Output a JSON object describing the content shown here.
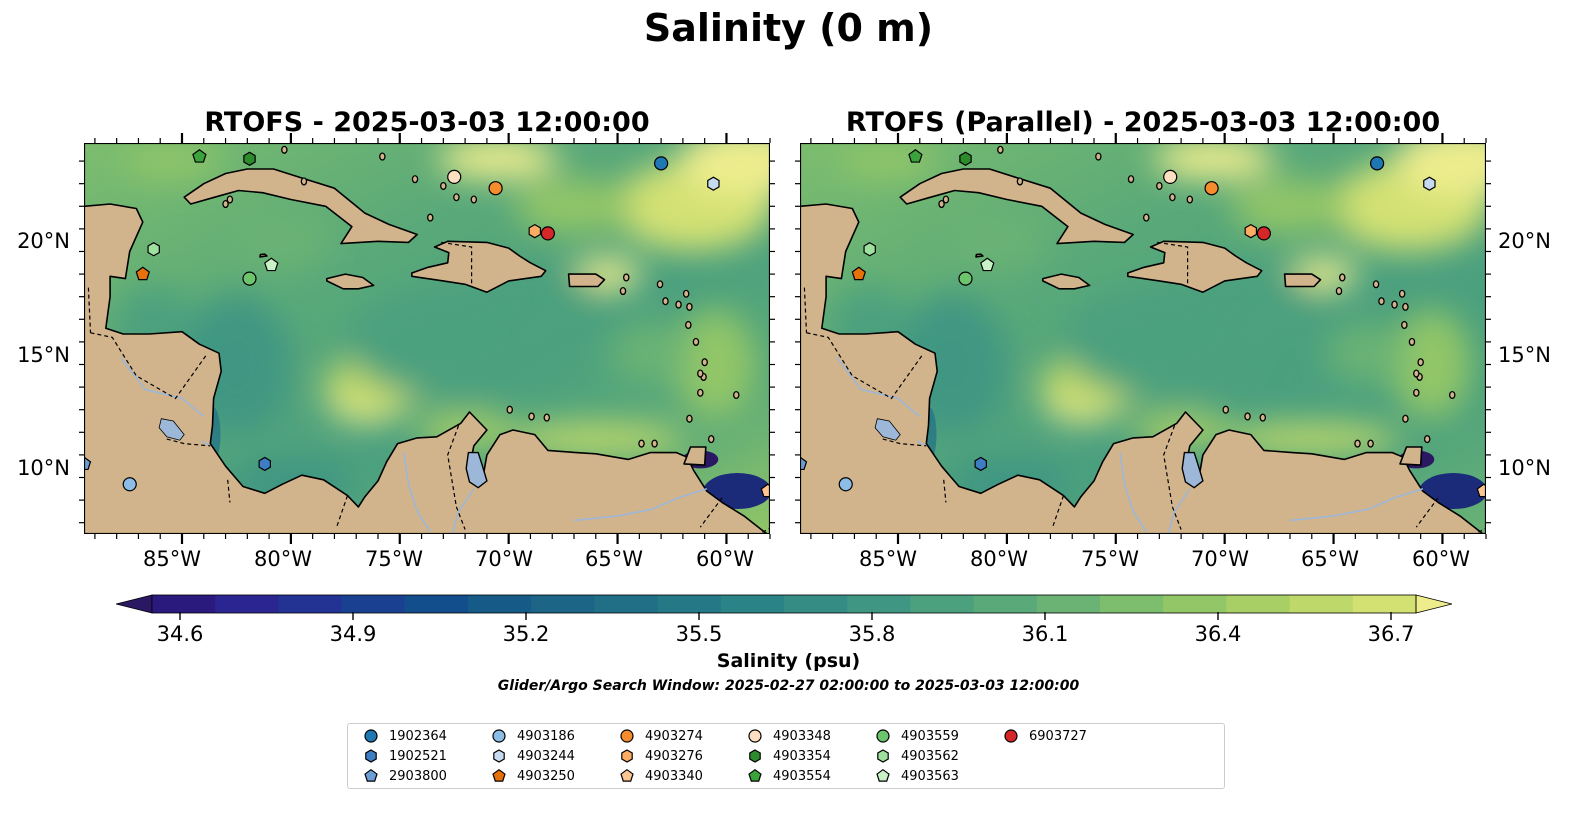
{
  "title": "Salinity (0 m)",
  "panels": [
    {
      "title": "RTOFS - 2025-03-03 12:00:00"
    },
    {
      "title": "RTOFS (Parallel) - 2025-03-03 12:00:00"
    }
  ],
  "map": {
    "lon_range": [
      -89.5,
      -58.0
    ],
    "lat_range": [
      7.0,
      24.3
    ],
    "lat_ticks": [
      "20°N",
      "15°N",
      "10°N"
    ],
    "lon_ticks": [
      "85°W",
      "80°W",
      "75°W",
      "70°W",
      "65°W",
      "60°W"
    ],
    "land_color": "#d2b48c",
    "pacific_color": "#2a1a6e",
    "lake_color": "#9db7d9"
  },
  "colorbar": {
    "label": "Salinity (psu)",
    "min": 34.6,
    "max": 36.7,
    "ticks": [
      "34.6",
      "34.9",
      "35.2",
      "35.5",
      "35.8",
      "36.1",
      "36.4",
      "36.7"
    ],
    "colors": [
      "#2a1862",
      "#2b1a7d",
      "#2a2590",
      "#233394",
      "#1a4191",
      "#134e8c",
      "#165a88",
      "#1c6586",
      "#216f86",
      "#257986",
      "#2a8387",
      "#348c85",
      "#3f9682",
      "#4ba07e",
      "#5aa979",
      "#6ab374",
      "#7cbd6e",
      "#92c667",
      "#a8cf66",
      "#bed86a",
      "#d3e173",
      "#eeed8e"
    ],
    "extend": "both"
  },
  "search_window": "Glider/Argo Search Window: 2025-02-27 02:00:00 to 2025-03-03 12:00:00",
  "platforms": [
    {
      "id": "1902364",
      "marker": "circle",
      "color": "#1f77b4",
      "lon": -63.0,
      "lat": 23.4
    },
    {
      "id": "1902521",
      "marker": "hexagon",
      "color": "#3c7dc4",
      "lon": -81.2,
      "lat": 10.1
    },
    {
      "id": "2903800",
      "marker": "pentagon",
      "color": "#6b9fd4",
      "lon": -89.5,
      "lat": 10.1
    },
    {
      "id": "4903186",
      "marker": "circle",
      "color": "#8bbde6",
      "lon": -87.4,
      "lat": 9.2
    },
    {
      "id": "4903244",
      "marker": "hexagon",
      "color": "#c6dbef",
      "lon": -60.6,
      "lat": 22.5
    },
    {
      "id": "4903250",
      "marker": "pentagon",
      "color": "#e6700a",
      "lon": -86.8,
      "lat": 18.5
    },
    {
      "id": "4903274",
      "marker": "circle",
      "color": "#f58d2f",
      "lon": -70.6,
      "lat": 22.3
    },
    {
      "id": "4903276",
      "marker": "hexagon",
      "color": "#fdad63",
      "lon": -68.8,
      "lat": 20.4
    },
    {
      "id": "4903340",
      "marker": "pentagon",
      "color": "#fdc591",
      "lon": -58.1,
      "lat": 8.9
    },
    {
      "id": "4903348",
      "marker": "circle",
      "color": "#fde0c2",
      "lon": -72.5,
      "lat": 22.8
    },
    {
      "id": "4903354",
      "marker": "hexagon",
      "color": "#2c8c2c",
      "lon": -81.9,
      "lat": 23.6
    },
    {
      "id": "4903554",
      "marker": "pentagon",
      "color": "#3ba33b",
      "lon": -84.2,
      "lat": 23.7
    },
    {
      "id": "4903559",
      "marker": "circle",
      "color": "#6cc46c",
      "lon": -81.9,
      "lat": 18.3
    },
    {
      "id": "4903562",
      "marker": "hexagon",
      "color": "#9ee19e",
      "lon": -86.3,
      "lat": 19.6
    },
    {
      "id": "4903563",
      "marker": "pentagon",
      "color": "#c9f2c6",
      "lon": -80.9,
      "lat": 18.9
    },
    {
      "id": "6903727",
      "marker": "circle",
      "color": "#d62728",
      "lon": -68.2,
      "lat": 20.3
    }
  ]
}
